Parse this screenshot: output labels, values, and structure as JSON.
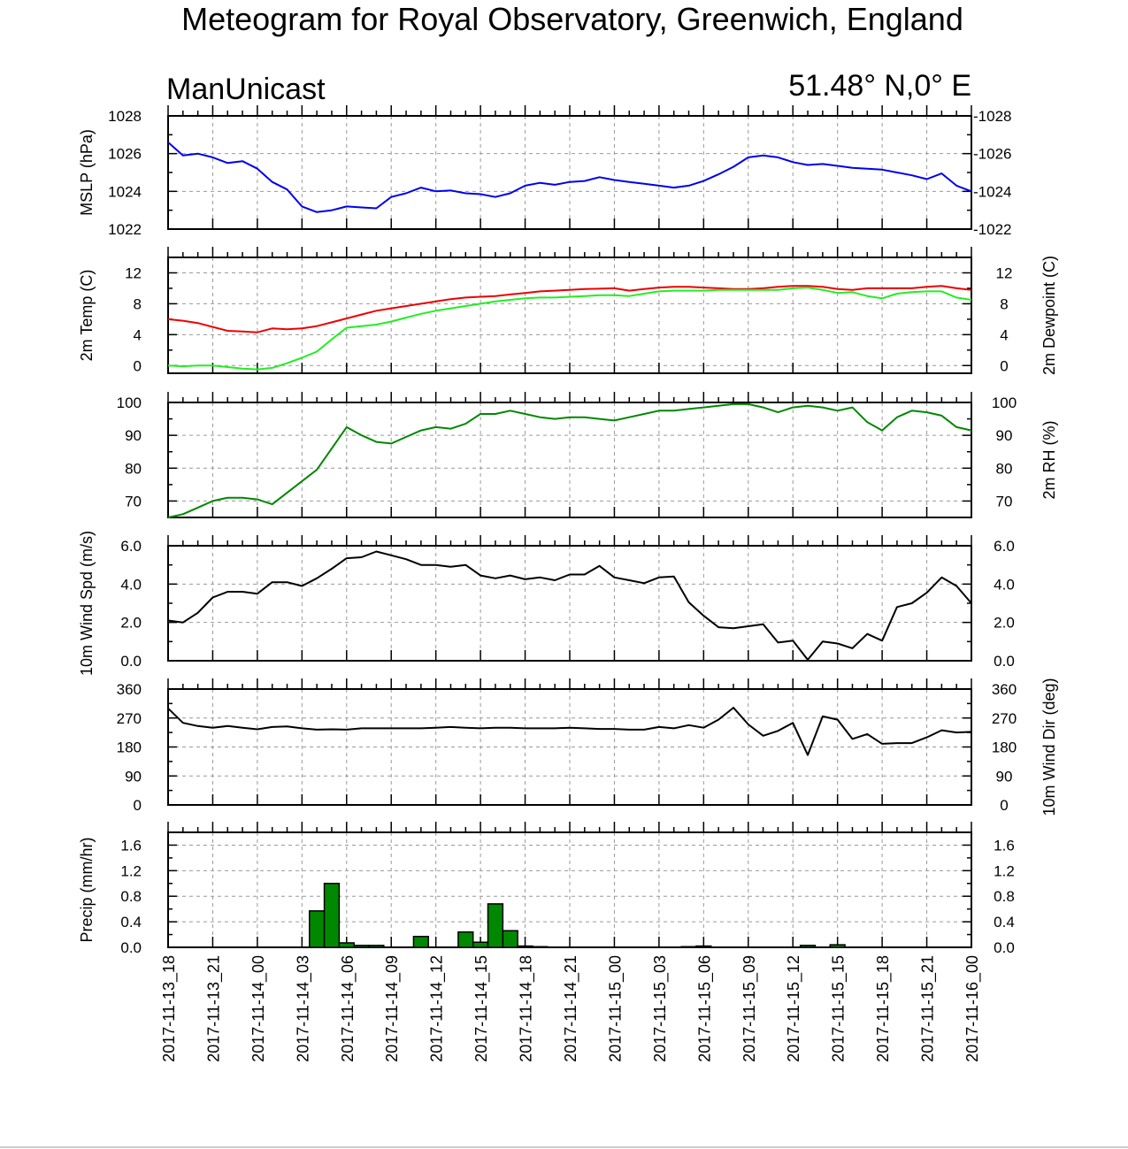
{
  "title": "Meteogram for Royal Observatory, Greenwich, England",
  "left_label": "ManUnicast",
  "right_label": "51.48° N,0° E",
  "x_labels": [
    "2017-11-13_18",
    "2017-11-13_21",
    "2017-11-14_00",
    "2017-11-14_03",
    "2017-11-14_06",
    "2017-11-14_09",
    "2017-11-14_12",
    "2017-11-14_15",
    "2017-11-14_18",
    "2017-11-14_21",
    "2017-11-15_00",
    "2017-11-15_03",
    "2017-11-15_06",
    "2017-11-15_09",
    "2017-11-15_12",
    "2017-11-15_15",
    "2017-11-15_18",
    "2017-11-15_21",
    "2017-11-16_00"
  ],
  "chart_data": [
    {
      "type": "line",
      "left_ylabel": "MSLP (hPa)",
      "right_ylabel": "",
      "ylim": [
        1022,
        1028
      ],
      "yticks": [
        1022,
        1024,
        1026,
        1028
      ],
      "ytick_labels": [
        "1022",
        "1024",
        "1026",
        "1028"
      ],
      "right_ticks": true,
      "right_tick_style": "dash",
      "grid": true,
      "series": [
        {
          "color": "#0000ee",
          "x": [
            0,
            1,
            2,
            3,
            4,
            5,
            6,
            7,
            8,
            9,
            10,
            11,
            12,
            13,
            14,
            15,
            16,
            17,
            18,
            19,
            20,
            21,
            22,
            23,
            24,
            25,
            26,
            27,
            28,
            29,
            30,
            31,
            32,
            33,
            34,
            35,
            36,
            37,
            38,
            39,
            40,
            41,
            42,
            43,
            44,
            45,
            46,
            47,
            48,
            49,
            50,
            51,
            52,
            53,
            54
          ],
          "values": [
            1026.6,
            1025.9,
            1026.0,
            1025.8,
            1025.5,
            1025.6,
            1025.2,
            1024.5,
            1024.1,
            1023.2,
            1022.9,
            1023.0,
            1023.2,
            1023.15,
            1023.1,
            1023.7,
            1023.9,
            1024.2,
            1024.0,
            1024.05,
            1023.9,
            1023.85,
            1023.7,
            1023.9,
            1024.3,
            1024.45,
            1024.35,
            1024.5,
            1024.55,
            1024.75,
            1024.6,
            1024.5,
            1024.4,
            1024.3,
            1024.2,
            1024.3,
            1024.55,
            1024.9,
            1025.3,
            1025.8,
            1025.9,
            1025.8,
            1025.55,
            1025.4,
            1025.45,
            1025.35,
            1025.25,
            1025.2,
            1025.15,
            1025.0,
            1024.85,
            1024.65,
            1024.95,
            1024.3,
            1024.0
          ]
        }
      ]
    },
    {
      "type": "line",
      "left_ylabel": "2m Temp (C)",
      "right_ylabel": "2m Dewpoint (C)",
      "ylim": [
        -1,
        14
      ],
      "yticks": [
        0,
        4,
        8,
        12
      ],
      "ytick_labels": [
        "0",
        "4",
        "8",
        "12"
      ],
      "right_ticks": true,
      "grid": true,
      "series": [
        {
          "color": "#ee0000",
          "x": [
            0,
            1,
            2,
            3,
            4,
            5,
            6,
            7,
            8,
            9,
            10,
            11,
            12,
            13,
            14,
            15,
            16,
            17,
            18,
            19,
            20,
            21,
            22,
            23,
            24,
            25,
            26,
            27,
            28,
            29,
            30,
            31,
            32,
            33,
            34,
            35,
            36,
            37,
            38,
            39,
            40,
            41,
            42,
            43,
            44,
            45,
            46,
            47,
            48,
            49,
            50,
            51,
            52,
            53,
            54
          ],
          "values": [
            6.0,
            5.8,
            5.5,
            5.0,
            4.5,
            4.4,
            4.3,
            4.8,
            4.7,
            4.8,
            5.1,
            5.6,
            6.1,
            6.6,
            7.1,
            7.4,
            7.7,
            8.0,
            8.3,
            8.6,
            8.8,
            8.9,
            9.0,
            9.2,
            9.4,
            9.6,
            9.7,
            9.8,
            9.9,
            9.95,
            10.0,
            9.7,
            9.9,
            10.1,
            10.2,
            10.2,
            10.1,
            10.0,
            9.9,
            9.9,
            10.0,
            10.2,
            10.3,
            10.3,
            10.2,
            9.9,
            9.8,
            10.0,
            10.0,
            10.0,
            10.0,
            10.2,
            10.3,
            10.0,
            9.8
          ]
        },
        {
          "color": "#22ee22",
          "x": [
            0,
            1,
            2,
            3,
            4,
            5,
            6,
            7,
            8,
            9,
            10,
            11,
            12,
            13,
            14,
            15,
            16,
            17,
            18,
            19,
            20,
            21,
            22,
            23,
            24,
            25,
            26,
            27,
            28,
            29,
            30,
            31,
            32,
            33,
            34,
            35,
            36,
            37,
            38,
            39,
            40,
            41,
            42,
            43,
            44,
            45,
            46,
            47,
            48,
            49,
            50,
            51,
            52,
            53,
            54
          ],
          "values": [
            0.0,
            -0.1,
            0.0,
            0.0,
            -0.2,
            -0.4,
            -0.5,
            -0.3,
            0.3,
            1.0,
            1.8,
            3.4,
            4.9,
            5.1,
            5.3,
            5.7,
            6.2,
            6.7,
            7.1,
            7.4,
            7.7,
            8.0,
            8.3,
            8.5,
            8.7,
            8.8,
            8.8,
            8.9,
            9.0,
            9.1,
            9.1,
            9.0,
            9.3,
            9.6,
            9.7,
            9.7,
            9.7,
            9.8,
            9.8,
            9.8,
            9.8,
            9.8,
            10.0,
            10.1,
            9.8,
            9.4,
            9.5,
            9.0,
            8.7,
            9.3,
            9.5,
            9.6,
            9.6,
            8.8,
            8.5
          ]
        }
      ]
    },
    {
      "type": "line",
      "left_ylabel": "",
      "right_ylabel": "2m RH (%)",
      "ylim": [
        65,
        100
      ],
      "yticks": [
        70,
        80,
        90,
        100
      ],
      "ytick_labels": [
        "70",
        "80",
        "90",
        "100"
      ],
      "right_ticks": true,
      "grid": true,
      "series": [
        {
          "color": "#008800",
          "x": [
            0,
            1,
            2,
            3,
            4,
            5,
            6,
            7,
            8,
            9,
            10,
            11,
            12,
            13,
            14,
            15,
            16,
            17,
            18,
            19,
            20,
            21,
            22,
            23,
            24,
            25,
            26,
            27,
            28,
            29,
            30,
            31,
            32,
            33,
            34,
            35,
            36,
            37,
            38,
            39,
            40,
            41,
            42,
            43,
            44,
            45,
            46,
            47,
            48,
            49,
            50,
            51,
            52,
            53,
            54
          ],
          "values": [
            65,
            66,
            68,
            70,
            71,
            71,
            70.5,
            69,
            72.5,
            76,
            79.5,
            86,
            92.5,
            90,
            88,
            87.5,
            89.5,
            91.5,
            92.5,
            92,
            93.5,
            96.5,
            96.5,
            97.5,
            96.5,
            95.5,
            95,
            95.5,
            95.5,
            95,
            94.5,
            95.5,
            96.5,
            97.5,
            97.5,
            98,
            98.5,
            99,
            99.5,
            99.5,
            98.5,
            97,
            98.5,
            99,
            98.5,
            97.5,
            98.5,
            94,
            91.5,
            95.5,
            97.5,
            97,
            96,
            92.5,
            91.5
          ]
        }
      ]
    },
    {
      "type": "line",
      "left_ylabel": "10m Wind Spd (m/s)",
      "right_ylabel": "",
      "ylim": [
        0,
        6
      ],
      "yticks": [
        0,
        2,
        4,
        6
      ],
      "ytick_labels": [
        "0.0",
        "2.0",
        "4.0",
        "6.0"
      ],
      "right_ticks": true,
      "grid": true,
      "series": [
        {
          "color": "#000000",
          "x": [
            0,
            1,
            2,
            3,
            4,
            5,
            6,
            7,
            8,
            9,
            10,
            11,
            12,
            13,
            14,
            15,
            16,
            17,
            18,
            19,
            20,
            21,
            22,
            23,
            24,
            25,
            26,
            27,
            28,
            29,
            30,
            31,
            32,
            33,
            34,
            35,
            36,
            37,
            38,
            39,
            40,
            41,
            42,
            43,
            44,
            45,
            46,
            47,
            48,
            49,
            50,
            51,
            52,
            53,
            54
          ],
          "values": [
            2.1,
            2.0,
            2.5,
            3.3,
            3.6,
            3.6,
            3.5,
            4.1,
            4.1,
            3.9,
            4.3,
            4.8,
            5.35,
            5.4,
            5.7,
            5.5,
            5.3,
            5.0,
            5.0,
            4.9,
            5.0,
            4.45,
            4.3,
            4.45,
            4.25,
            4.35,
            4.2,
            4.5,
            4.5,
            4.95,
            4.35,
            4.2,
            4.05,
            4.35,
            4.4,
            3.05,
            2.35,
            1.75,
            1.7,
            1.8,
            1.9,
            0.95,
            1.05,
            0.05,
            1.0,
            0.9,
            0.65,
            1.4,
            1.05,
            2.8,
            3.0,
            3.55,
            4.35,
            3.9,
            3.0
          ]
        }
      ]
    },
    {
      "type": "line",
      "left_ylabel": "",
      "right_ylabel": "10m Wind Dir (deg)",
      "ylim": [
        0,
        360
      ],
      "yticks": [
        0,
        90,
        180,
        270,
        360
      ],
      "ytick_labels": [
        "0",
        "90",
        "180",
        "270",
        "360"
      ],
      "right_ticks": true,
      "grid": true,
      "series": [
        {
          "color": "#000000",
          "x": [
            0,
            1,
            2,
            3,
            4,
            5,
            6,
            7,
            8,
            9,
            10,
            11,
            12,
            13,
            14,
            15,
            16,
            17,
            18,
            19,
            20,
            21,
            22,
            23,
            24,
            25,
            26,
            27,
            28,
            29,
            30,
            31,
            32,
            33,
            34,
            35,
            36,
            37,
            38,
            39,
            40,
            41,
            42,
            43,
            44,
            45,
            46,
            47,
            48,
            49,
            50,
            51,
            52,
            53,
            54
          ],
          "values": [
            300,
            255,
            245,
            240,
            245,
            240,
            235,
            242,
            244,
            238,
            234,
            235,
            234,
            238,
            238,
            238,
            238,
            238,
            240,
            242,
            240,
            238,
            240,
            240,
            238,
            238,
            238,
            240,
            238,
            236,
            236,
            234,
            234,
            242,
            238,
            248,
            240,
            265,
            302,
            250,
            215,
            230,
            255,
            155,
            275,
            265,
            205,
            220,
            190,
            192,
            192,
            210,
            232,
            225,
            227
          ]
        }
      ]
    },
    {
      "type": "bar",
      "left_ylabel": "Precip (mm/hr)",
      "right_ylabel": "",
      "ylim": [
        0,
        1.8
      ],
      "yticks": [
        0,
        0.4,
        0.8,
        1.2,
        1.6
      ],
      "ytick_labels": [
        "0.0",
        "0.4",
        "0.8",
        "1.2",
        "1.6"
      ],
      "right_ticks": true,
      "grid": true,
      "bar_color": "#008800",
      "bar_x": [
        10,
        11,
        12,
        13,
        14,
        17,
        20,
        21,
        22,
        23,
        24,
        25,
        35,
        36,
        43,
        45
      ],
      "bar_values": [
        0.57,
        1.0,
        0.07,
        0.03,
        0.03,
        0.17,
        0.24,
        0.08,
        0.68,
        0.26,
        0.02,
        0.01,
        0.01,
        0.02,
        0.03,
        0.04
      ]
    }
  ]
}
